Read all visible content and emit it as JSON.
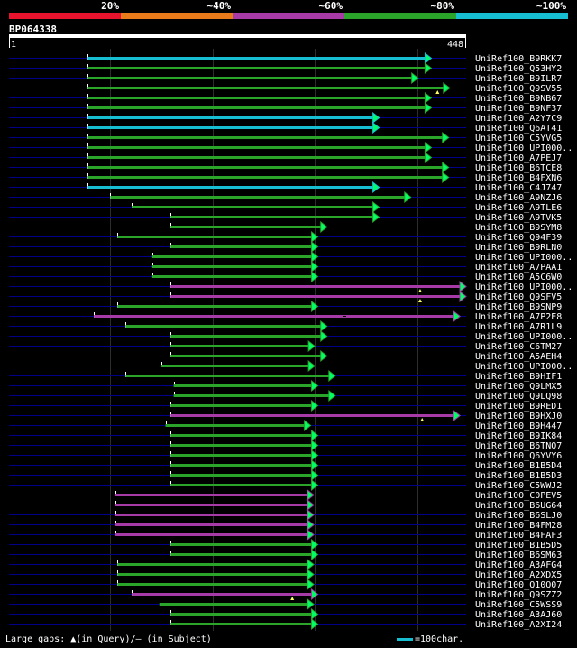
{
  "colors": {
    "background": "#000000",
    "cyan": "#17bed2",
    "green": "#2aa52a",
    "magenta": "#a63aa6",
    "arrow_fill": "#00ff66",
    "white": "#ffffff",
    "guide_blue": "#000088",
    "grid": "#2d2d2d"
  },
  "header": {
    "segments": [
      {
        "label": "20%",
        "color": "#e8132d"
      },
      {
        "label": "~40%",
        "color": "#e97b1a"
      },
      {
        "label": "~60%",
        "color": "#a63aa6"
      },
      {
        "label": "~80%",
        "color": "#2aa52a"
      },
      {
        "label": "~100%",
        "color": "#17bed2"
      }
    ]
  },
  "query": {
    "name": "BP064338",
    "start_label": "1",
    "end_label": "448",
    "length": 448
  },
  "footer": {
    "text": "Large gaps: ▲(in Query)/– (in Subject)",
    "scale_text": "=100char."
  },
  "chart_data": {
    "type": "alignment",
    "title": "BP064338",
    "x_range": [
      1,
      448
    ],
    "gridlines": [
      100,
      200,
      300,
      400
    ],
    "hits": [
      {
        "name": "UniRef100_B9RKK7",
        "start": 78,
        "end": 414,
        "color": "cyan"
      },
      {
        "name": "UniRef100_Q53HY2",
        "start": 78,
        "end": 414,
        "color": "green"
      },
      {
        "name": "UniRef100_B9ILR7",
        "start": 78,
        "end": 401,
        "color": "green"
      },
      {
        "name": "UniRef100_Q9SV55",
        "start": 78,
        "end": 432,
        "color": "green",
        "query_gap_at": 420
      },
      {
        "name": "UniRef100_B9NB67",
        "start": 78,
        "end": 414,
        "color": "green"
      },
      {
        "name": "UniRef100_B9NF37",
        "start": 78,
        "end": 414,
        "color": "green"
      },
      {
        "name": "UniRef100_A2Y7C9",
        "start": 78,
        "end": 363,
        "color": "cyan"
      },
      {
        "name": "UniRef100_Q6AT41",
        "start": 78,
        "end": 363,
        "color": "cyan"
      },
      {
        "name": "UniRef100_C5YVG5",
        "start": 78,
        "end": 431,
        "color": "green"
      },
      {
        "name": "UniRef100_UPI000..",
        "start": 78,
        "end": 414,
        "color": "green"
      },
      {
        "name": "UniRef100_A7PEJ7",
        "start": 78,
        "end": 414,
        "color": "green"
      },
      {
        "name": "UniRef100_B6TCE8",
        "start": 78,
        "end": 431,
        "color": "green"
      },
      {
        "name": "UniRef100_B4FXN6",
        "start": 78,
        "end": 431,
        "color": "green"
      },
      {
        "name": "UniRef100_C4J747",
        "start": 78,
        "end": 363,
        "color": "cyan"
      },
      {
        "name": "UniRef100_A9NZJ6",
        "start": 100,
        "end": 394,
        "color": "green"
      },
      {
        "name": "UniRef100_A9TLE6",
        "start": 121,
        "end": 363,
        "color": "green"
      },
      {
        "name": "UniRef100_A9TVK5",
        "start": 159,
        "end": 363,
        "color": "green"
      },
      {
        "name": "UniRef100_B9SYM8",
        "start": 159,
        "end": 312,
        "color": "green"
      },
      {
        "name": "UniRef100_Q94F39",
        "start": 107,
        "end": 303,
        "color": "green"
      },
      {
        "name": "UniRef100_B9RLN0",
        "start": 159,
        "end": 303,
        "color": "green"
      },
      {
        "name": "UniRef100_UPI000..",
        "start": 141,
        "end": 303,
        "color": "green"
      },
      {
        "name": "UniRef100_A7PAA1",
        "start": 141,
        "end": 303,
        "color": "green"
      },
      {
        "name": "UniRef100_A5C6W0",
        "start": 141,
        "end": 303,
        "color": "green"
      },
      {
        "name": "UniRef100_UPI000..",
        "start": 159,
        "end": 448,
        "color": "magenta",
        "query_gap_at": 403
      },
      {
        "name": "UniRef100_Q9SFV5",
        "start": 159,
        "end": 448,
        "color": "magenta",
        "query_gap_at": 403
      },
      {
        "name": "UniRef100_B9SNP9",
        "start": 107,
        "end": 303,
        "color": "green"
      },
      {
        "name": "UniRef100_A7P2E8",
        "start": 84,
        "end": 442,
        "color": "magenta",
        "subject_gap_at": 329
      },
      {
        "name": "UniRef100_A7R1L9",
        "start": 115,
        "end": 312,
        "color": "green"
      },
      {
        "name": "UniRef100_UPI000..",
        "start": 159,
        "end": 312,
        "color": "green"
      },
      {
        "name": "UniRef100_C6TM27",
        "start": 159,
        "end": 300,
        "color": "green"
      },
      {
        "name": "UniRef100_A5AEH4",
        "start": 159,
        "end": 312,
        "color": "green"
      },
      {
        "name": "UniRef100_UPI000..",
        "start": 150,
        "end": 300,
        "color": "green"
      },
      {
        "name": "UniRef100_B9HIF1",
        "start": 115,
        "end": 320,
        "color": "green"
      },
      {
        "name": "UniRef100_Q9LMX5",
        "start": 162,
        "end": 303,
        "color": "green"
      },
      {
        "name": "UniRef100_Q9LQ98",
        "start": 162,
        "end": 320,
        "color": "green"
      },
      {
        "name": "UniRef100_B9RED1",
        "start": 159,
        "end": 303,
        "color": "green"
      },
      {
        "name": "UniRef100_B9HXJ0",
        "start": 159,
        "end": 442,
        "color": "magenta",
        "query_gap_at": 405
      },
      {
        "name": "UniRef100_B9H447",
        "start": 154,
        "end": 296,
        "color": "green"
      },
      {
        "name": "UniRef100_B9IK84",
        "start": 159,
        "end": 303,
        "color": "green"
      },
      {
        "name": "UniRef100_B6TNQ7",
        "start": 159,
        "end": 303,
        "color": "green"
      },
      {
        "name": "UniRef100_Q6YVY6",
        "start": 159,
        "end": 303,
        "color": "green"
      },
      {
        "name": "UniRef100_B1B5D4",
        "start": 159,
        "end": 303,
        "color": "green"
      },
      {
        "name": "UniRef100_B1B5D3",
        "start": 159,
        "end": 303,
        "color": "green"
      },
      {
        "name": "UniRef100_C5WWJ2",
        "start": 159,
        "end": 303,
        "color": "green"
      },
      {
        "name": "UniRef100_C0PEV5",
        "start": 105,
        "end": 299,
        "color": "magenta"
      },
      {
        "name": "UniRef100_B6UG64",
        "start": 105,
        "end": 299,
        "color": "magenta"
      },
      {
        "name": "UniRef100_B6SLJ0",
        "start": 105,
        "end": 299,
        "color": "magenta"
      },
      {
        "name": "UniRef100_B4FM28",
        "start": 105,
        "end": 299,
        "color": "magenta"
      },
      {
        "name": "UniRef100_B4FAF3",
        "start": 105,
        "end": 299,
        "color": "magenta"
      },
      {
        "name": "UniRef100_B1B5D5",
        "start": 159,
        "end": 303,
        "color": "green"
      },
      {
        "name": "UniRef100_B6SM63",
        "start": 159,
        "end": 303,
        "color": "green"
      },
      {
        "name": "UniRef100_A3AFG4",
        "start": 107,
        "end": 299,
        "color": "green"
      },
      {
        "name": "UniRef100_A2XDX5",
        "start": 107,
        "end": 299,
        "color": "green"
      },
      {
        "name": "UniRef100_Q10Q07",
        "start": 107,
        "end": 299,
        "color": "green"
      },
      {
        "name": "UniRef100_Q9SZZ2",
        "start": 121,
        "end": 303,
        "color": "magenta",
        "query_gap_at": 278
      },
      {
        "name": "UniRef100_C5WSS9",
        "start": 148,
        "end": 299,
        "color": "green"
      },
      {
        "name": "UniRef100_A3AJ60",
        "start": 159,
        "end": 303,
        "color": "green"
      },
      {
        "name": "UniRef100_A2XI24",
        "start": 159,
        "end": 303,
        "color": "green"
      }
    ]
  }
}
